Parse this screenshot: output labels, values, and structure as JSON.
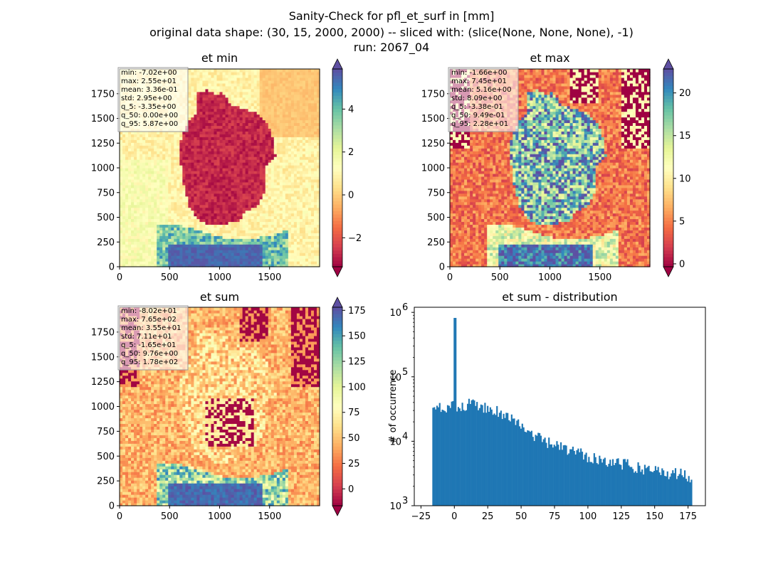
{
  "figure": {
    "title_lines": [
      "Sanity-Check for pfl_et_surf in [mm]",
      "original data shape: (30, 15, 2000, 2000) -- sliced with: (slice(None, None, None), -1)",
      "run: 2067_04"
    ]
  },
  "colors": {
    "colormap": [
      "#9e0142",
      "#d53e4f",
      "#f46d43",
      "#fdae61",
      "#fee08b",
      "#ffffbf",
      "#e6f598",
      "#abdda4",
      "#66c2a5",
      "#3288bd",
      "#5e4fa2"
    ],
    "hist_bar": "#1f77b4"
  },
  "chart_data": [
    {
      "type": "heatmap",
      "title": "et min",
      "xticks": [
        "0",
        "500",
        "1000",
        "1500"
      ],
      "yticks": [
        "0",
        "250",
        "500",
        "750",
        "1000",
        "1250",
        "1500",
        "1750"
      ],
      "xlim": [
        0,
        2000
      ],
      "ylim": [
        0,
        2000
      ],
      "colorbar": {
        "range": [
          -3.35,
          5.87
        ],
        "ticks": [
          -2,
          0,
          2,
          4
        ],
        "tick_labels": [
          "−2",
          "0",
          "2",
          "4"
        ],
        "extend": "both"
      },
      "stats": [
        "min: -7.02e+00",
        "max: 2.55e+01",
        "mean: 3.36e-01",
        "std: 2.95e+00",
        "q_5: -3.35e+00",
        "q_50: 0.00e+00",
        "q_95: 5.87e+00"
      ]
    },
    {
      "type": "heatmap",
      "title": "et max",
      "xticks": [
        "0",
        "500",
        "1000",
        "1500"
      ],
      "yticks": [
        "0",
        "250",
        "500",
        "750",
        "1000",
        "1250",
        "1500",
        "1750"
      ],
      "xlim": [
        0,
        2000
      ],
      "ylim": [
        0,
        2000
      ],
      "colorbar": {
        "range": [
          -0.338,
          22.8
        ],
        "ticks": [
          0,
          5,
          10,
          15,
          20
        ],
        "tick_labels": [
          "0",
          "5",
          "10",
          "15",
          "20"
        ],
        "extend": "both"
      },
      "stats": [
        "min: -1.66e+00",
        "max: 7.45e+01",
        "mean: 5.16e+00",
        "std: 8.09e+00",
        "q_5: -3.38e-01",
        "q_50: 9.49e-01",
        "q_95: 2.28e+01"
      ]
    },
    {
      "type": "heatmap",
      "title": "et sum",
      "xticks": [
        "0",
        "500",
        "1000",
        "1500"
      ],
      "yticks": [
        "0",
        "250",
        "500",
        "750",
        "1000",
        "1250",
        "1500",
        "1750"
      ],
      "xlim": [
        0,
        2000
      ],
      "ylim": [
        0,
        2000
      ],
      "colorbar": {
        "range": [
          -16.5,
          178
        ],
        "ticks": [
          0,
          25,
          50,
          75,
          100,
          125,
          150,
          175
        ],
        "tick_labels": [
          "0",
          "25",
          "50",
          "75",
          "100",
          "125",
          "150",
          "175"
        ],
        "extend": "both"
      },
      "stats": [
        "min: -8.02e+01",
        "max: 7.65e+02",
        "mean: 3.55e+01",
        "std: 7.11e+01",
        "q_5: -1.65e+01",
        "q_50: 9.76e+00",
        "q_95: 1.78e+02"
      ]
    },
    {
      "type": "bar",
      "title": "et sum - distribution",
      "ylabel": "# of occurrence",
      "yscale": "log",
      "xlim": [
        -30,
        188
      ],
      "ylim": [
        1000,
        1200000
      ],
      "xticks": [
        -25,
        0,
        25,
        50,
        75,
        100,
        125,
        150,
        175
      ],
      "xtick_labels": [
        "−25",
        "0",
        "25",
        "50",
        "75",
        "100",
        "125",
        "150",
        "175"
      ],
      "yticks": [
        1000,
        10000,
        100000,
        1000000
      ],
      "ytick_labels": [
        "10",
        "10",
        "10",
        "10"
      ],
      "ytick_exponents": [
        "3",
        "4",
        "5",
        "6"
      ],
      "bins": {
        "start": -16.5,
        "end": 178,
        "count": 195
      },
      "spike": {
        "x": 0,
        "count": 820000
      },
      "envelope": [
        [
          -16.5,
          27000
        ],
        [
          -10,
          34000
        ],
        [
          0,
          37000
        ],
        [
          10,
          38000
        ],
        [
          20,
          36000
        ],
        [
          30,
          31000
        ],
        [
          40,
          25000
        ],
        [
          50,
          17000
        ],
        [
          60,
          12000
        ],
        [
          70,
          9500
        ],
        [
          80,
          8000
        ],
        [
          90,
          6800
        ],
        [
          100,
          6000
        ],
        [
          110,
          5300
        ],
        [
          120,
          4700
        ],
        [
          130,
          4300
        ],
        [
          140,
          3900
        ],
        [
          150,
          3600
        ],
        [
          160,
          3300
        ],
        [
          170,
          3100
        ],
        [
          178,
          2900
        ]
      ]
    }
  ]
}
